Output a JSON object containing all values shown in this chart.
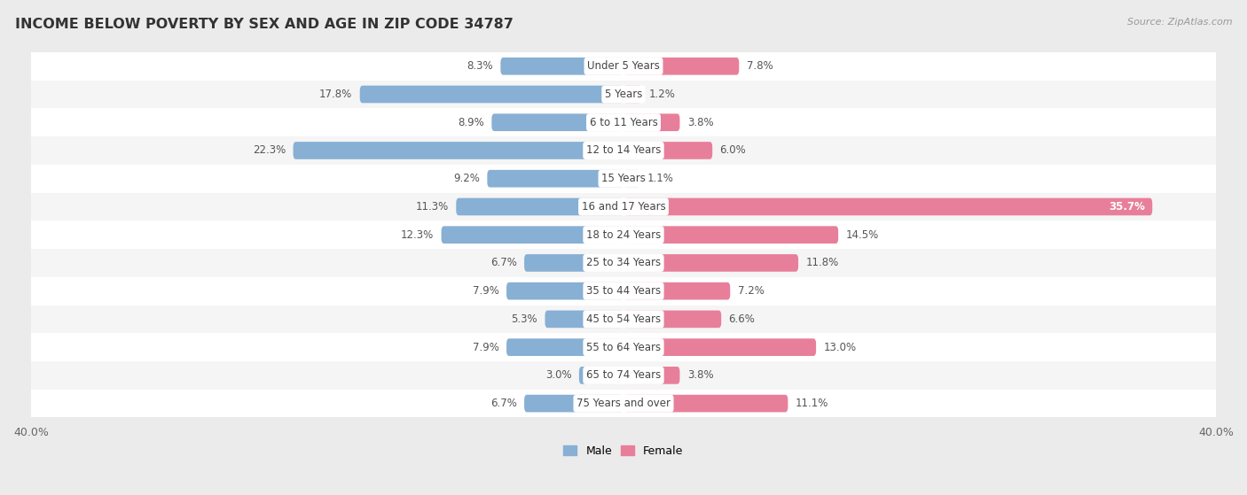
{
  "title": "INCOME BELOW POVERTY BY SEX AND AGE IN ZIP CODE 34787",
  "source": "Source: ZipAtlas.com",
  "categories": [
    "Under 5 Years",
    "5 Years",
    "6 to 11 Years",
    "12 to 14 Years",
    "15 Years",
    "16 and 17 Years",
    "18 to 24 Years",
    "25 to 34 Years",
    "35 to 44 Years",
    "45 to 54 Years",
    "55 to 64 Years",
    "65 to 74 Years",
    "75 Years and over"
  ],
  "male_values": [
    8.3,
    17.8,
    8.9,
    22.3,
    9.2,
    11.3,
    12.3,
    6.7,
    7.9,
    5.3,
    7.9,
    3.0,
    6.7
  ],
  "female_values": [
    7.8,
    1.2,
    3.8,
    6.0,
    1.1,
    35.7,
    14.5,
    11.8,
    7.2,
    6.6,
    13.0,
    3.8,
    11.1
  ],
  "male_color": "#88afd4",
  "female_color": "#e87f9a",
  "xlim": 40.0,
  "bar_height": 0.62,
  "background_color": "#ebebeb",
  "row_bg_odd": "#f5f5f5",
  "row_bg_even": "#ffffff",
  "title_fontsize": 11.5,
  "label_fontsize": 8.5,
  "value_fontsize": 8.5,
  "tick_fontsize": 9,
  "source_fontsize": 8,
  "legend_fontsize": 9
}
